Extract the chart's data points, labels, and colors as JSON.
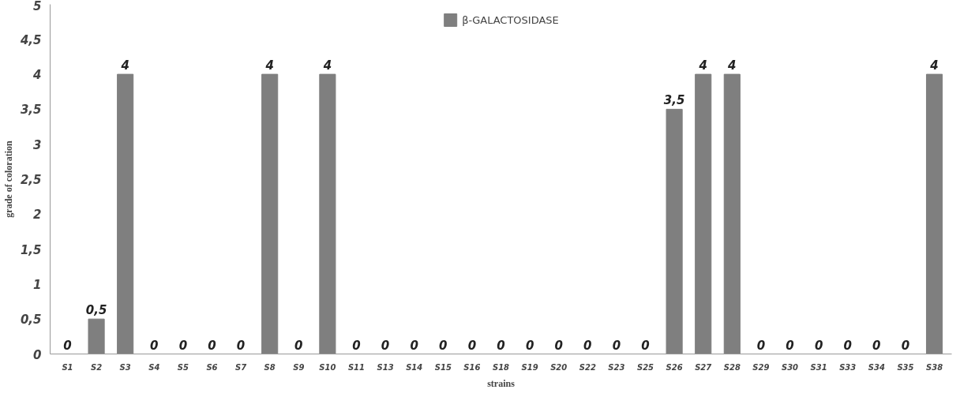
{
  "chart_data": {
    "type": "bar",
    "xlabel": "strains",
    "ylabel": "grade of coloration",
    "categories": [
      "S1",
      "S2",
      "S3",
      "S4",
      "S5",
      "S6",
      "S7",
      "S8",
      "S9",
      "S10",
      "S11",
      "S13",
      "S14",
      "S15",
      "S16",
      "S18",
      "S19",
      "S20",
      "S22",
      "S23",
      "S25",
      "S26",
      "S27",
      "S28",
      "S29",
      "S30",
      "S31",
      "S33",
      "S34",
      "S35",
      "S38"
    ],
    "series": [
      {
        "name": "β-GALACTOSIDASE",
        "color": "#7f7f7f",
        "values": [
          0,
          0.5,
          4,
          0,
          0,
          0,
          0,
          4,
          0,
          4,
          0,
          0,
          0,
          0,
          0,
          0,
          0,
          0,
          0,
          0,
          0,
          3.5,
          4,
          4,
          0,
          0,
          0,
          0,
          0,
          0,
          4
        ],
        "value_labels": [
          "0",
          "0,5",
          "4",
          "0",
          "0",
          "0",
          "0",
          "4",
          "0",
          "4",
          "0",
          "0",
          "0",
          "0",
          "0",
          "0",
          "0",
          "0",
          "0",
          "0",
          "0",
          "3,5",
          "4",
          "4",
          "0",
          "0",
          "0",
          "0",
          "0",
          "0",
          "4"
        ]
      }
    ],
    "ylim": [
      0,
      5
    ],
    "yticks": [
      0,
      {
        "value": 0.5,
        "label": "0,5"
      },
      1,
      {
        "value": 1.5,
        "label": "1,5"
      },
      2,
      {
        "value": 2.5,
        "label": "2,5"
      },
      3,
      {
        "value": 3.5,
        "label": "3,5"
      },
      4,
      {
        "value": 4.5,
        "label": "4,5"
      },
      5
    ],
    "grid": false,
    "legend": "top"
  }
}
